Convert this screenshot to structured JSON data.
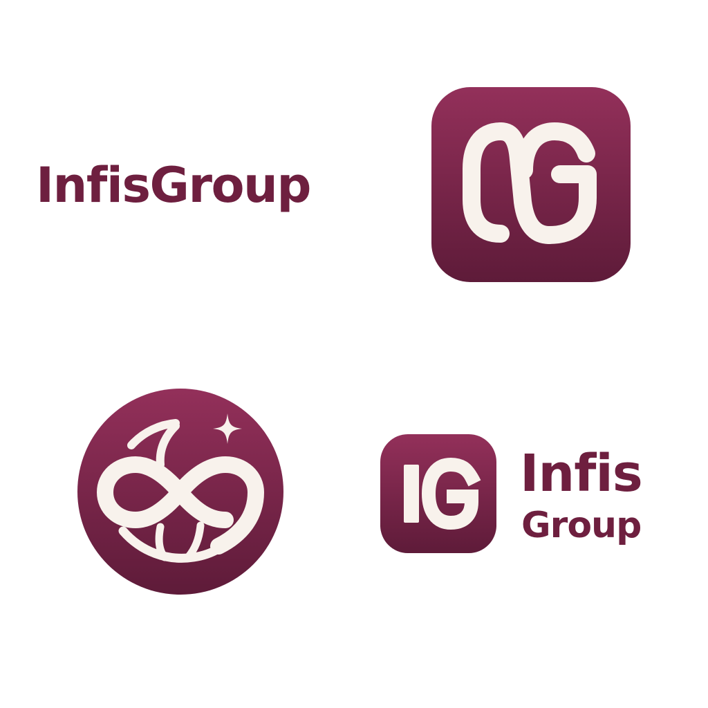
{
  "colors": {
    "brand_top": "#93305a",
    "brand_bottom": "#5e1b39",
    "brand_text": "#6e1f3f",
    "mark": "#f8f2ec",
    "background": "#ffffff"
  },
  "wordmark": {
    "text": "InfisGroup"
  },
  "app_icon": {
    "letters": "OG",
    "icon": "og-monogram-icon"
  },
  "circle_emblem": {
    "icon": "infinity-globe-icon",
    "accent_icon": "sparkle-icon"
  },
  "lockup": {
    "monogram": "IG",
    "icon": "ig-monogram-icon",
    "line1": "Infis",
    "line2": "Group"
  }
}
